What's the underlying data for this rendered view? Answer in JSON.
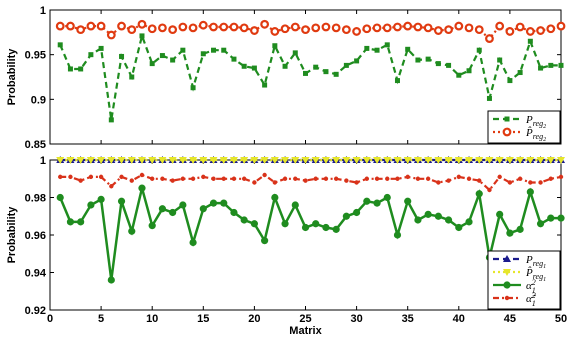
{
  "chart_data": [
    {
      "type": "line",
      "ylabel": "Probability",
      "xlabel": "",
      "xlim": [
        0,
        50
      ],
      "ylim": [
        0.85,
        1
      ],
      "xticks": [
        0,
        5,
        10,
        15,
        20,
        25,
        30,
        35,
        40,
        45,
        50
      ],
      "yticks": [
        0.85,
        0.9,
        0.95,
        1
      ],
      "ytick_labels": [
        "0.85",
        "0.9",
        "0.95",
        "1"
      ],
      "grid": false,
      "legend_position": "bottom-right",
      "x": [
        1,
        2,
        3,
        4,
        5,
        6,
        7,
        8,
        9,
        10,
        11,
        12,
        13,
        14,
        15,
        16,
        17,
        18,
        19,
        20,
        21,
        22,
        23,
        24,
        25,
        26,
        27,
        28,
        29,
        30,
        31,
        32,
        33,
        34,
        35,
        36,
        37,
        38,
        39,
        40,
        41,
        42,
        43,
        44,
        45,
        46,
        47,
        48,
        49,
        50
      ],
      "series": [
        {
          "name": "P_reg2",
          "legend_label_main": "P",
          "legend_label_sub": "reg",
          "legend_label_subsub": "2",
          "legend_hat": false,
          "color": "#1f8c1f",
          "style": "dashed",
          "marker": "square",
          "values": [
            0.961,
            0.934,
            0.934,
            0.95,
            0.957,
            0.877,
            0.948,
            0.925,
            0.971,
            0.94,
            0.949,
            0.944,
            0.955,
            0.913,
            0.951,
            0.955,
            0.955,
            0.945,
            0.937,
            0.935,
            0.916,
            0.96,
            0.937,
            0.952,
            0.929,
            0.936,
            0.931,
            0.928,
            0.938,
            0.943,
            0.957,
            0.955,
            0.961,
            0.921,
            0.956,
            0.944,
            0.945,
            0.94,
            0.938,
            0.927,
            0.932,
            0.955,
            0.901,
            0.944,
            0.921,
            0.93,
            0.965,
            0.935,
            0.938,
            0.938
          ]
        },
        {
          "name": "P̂_reg2",
          "legend_label_main": "P",
          "legend_label_sub": "reg",
          "legend_label_subsub": "2",
          "legend_hat": true,
          "color": "#e03a10",
          "style": "dotted",
          "marker": "circle",
          "values": [
            0.982,
            0.982,
            0.978,
            0.982,
            0.982,
            0.972,
            0.982,
            0.978,
            0.984,
            0.979,
            0.98,
            0.978,
            0.981,
            0.98,
            0.983,
            0.981,
            0.981,
            0.981,
            0.98,
            0.977,
            0.984,
            0.976,
            0.979,
            0.981,
            0.978,
            0.98,
            0.981,
            0.98,
            0.978,
            0.976,
            0.979,
            0.98,
            0.98,
            0.981,
            0.982,
            0.981,
            0.98,
            0.977,
            0.978,
            0.982,
            0.98,
            0.978,
            0.968,
            0.982,
            0.976,
            0.981,
            0.976,
            0.977,
            0.979,
            0.982
          ]
        }
      ]
    },
    {
      "type": "line",
      "ylabel": "Probability",
      "xlabel": "Matrix",
      "xlim": [
        0,
        50
      ],
      "ylim": [
        0.92,
        1
      ],
      "xticks": [
        0,
        5,
        10,
        15,
        20,
        25,
        30,
        35,
        40,
        45,
        50
      ],
      "xtick_labels": [
        "0",
        "5",
        "10",
        "15",
        "20",
        "25",
        "30",
        "35",
        "40",
        "45",
        "50"
      ],
      "yticks": [
        0.92,
        0.94,
        0.96,
        0.98,
        1
      ],
      "ytick_labels": [
        "0.92",
        "0.94",
        "0.96",
        "0.98",
        "1"
      ],
      "grid": false,
      "legend_position": "bottom-right",
      "x": [
        1,
        2,
        3,
        4,
        5,
        6,
        7,
        8,
        9,
        10,
        11,
        12,
        13,
        14,
        15,
        16,
        17,
        18,
        19,
        20,
        21,
        22,
        23,
        24,
        25,
        26,
        27,
        28,
        29,
        30,
        31,
        32,
        33,
        34,
        35,
        36,
        37,
        38,
        39,
        40,
        41,
        42,
        43,
        44,
        45,
        46,
        47,
        48,
        49,
        50
      ],
      "series": [
        {
          "name": "P_reg1",
          "legend_label_main": "P",
          "legend_label_sub": "reg",
          "legend_label_subsub": "1",
          "legend_hat": false,
          "color": "#1a1a8c",
          "style": "dashed",
          "marker": "triangle-up",
          "values": [
            1,
            1,
            1,
            1,
            1,
            1,
            1,
            1,
            1,
            1,
            1,
            1,
            1,
            1,
            1,
            1,
            1,
            1,
            1,
            1,
            1,
            1,
            1,
            1,
            1,
            1,
            1,
            1,
            1,
            1,
            1,
            1,
            1,
            1,
            1,
            1,
            1,
            1,
            1,
            1,
            1,
            1,
            1,
            1,
            1,
            1,
            1,
            1,
            1,
            1
          ]
        },
        {
          "name": "P̂_reg1",
          "legend_label_main": "P",
          "legend_label_sub": "reg",
          "legend_label_subsub": "1",
          "legend_hat": true,
          "color": "#e6e62a",
          "style": "dotted",
          "marker": "triangle-down",
          "values": [
            1,
            1,
            1,
            1,
            1,
            1,
            1,
            1,
            1,
            1,
            1,
            1,
            1,
            1,
            1,
            1,
            1,
            1,
            1,
            1,
            1,
            1,
            1,
            1,
            1,
            1,
            1,
            1,
            1,
            1,
            1,
            1,
            1,
            1,
            1,
            1,
            1,
            1,
            1,
            1,
            1,
            1,
            1,
            1,
            1,
            1,
            1,
            1,
            1,
            1
          ]
        },
        {
          "name": "α_1^2",
          "legend_label_main": "α",
          "legend_label_sub": "1",
          "legend_label_sup": "2",
          "legend_hat": false,
          "color": "#1f8c1f",
          "style": "solid",
          "marker": "circle-filled",
          "values": [
            0.98,
            0.967,
            0.967,
            0.976,
            0.979,
            0.936,
            0.978,
            0.962,
            0.985,
            0.965,
            0.974,
            0.972,
            0.976,
            0.956,
            0.974,
            0.977,
            0.977,
            0.972,
            0.968,
            0.966,
            0.957,
            0.98,
            0.966,
            0.976,
            0.964,
            0.966,
            0.964,
            0.963,
            0.97,
            0.972,
            0.978,
            0.977,
            0.98,
            0.96,
            0.978,
            0.968,
            0.971,
            0.97,
            0.968,
            0.964,
            0.967,
            0.982,
            0.948,
            0.971,
            0.961,
            0.963,
            0.983,
            0.966,
            0.969,
            0.969
          ]
        },
        {
          "name": "α̃_1^2",
          "legend_label_main": "α",
          "legend_label_sub": "1",
          "legend_label_sup": "2",
          "legend_hat": false,
          "legend_tilde": true,
          "color": "#d9321a",
          "style": "dashdot",
          "marker": "circle-small",
          "values": [
            0.991,
            0.991,
            0.989,
            0.991,
            0.991,
            0.986,
            0.991,
            0.989,
            0.992,
            0.99,
            0.99,
            0.989,
            0.99,
            0.99,
            0.991,
            0.99,
            0.99,
            0.99,
            0.99,
            0.988,
            0.992,
            0.988,
            0.99,
            0.99,
            0.989,
            0.99,
            0.99,
            0.99,
            0.989,
            0.988,
            0.99,
            0.99,
            0.99,
            0.99,
            0.991,
            0.99,
            0.99,
            0.988,
            0.989,
            0.991,
            0.99,
            0.989,
            0.984,
            0.991,
            0.988,
            0.99,
            0.988,
            0.988,
            0.99,
            0.991
          ]
        }
      ]
    }
  ]
}
